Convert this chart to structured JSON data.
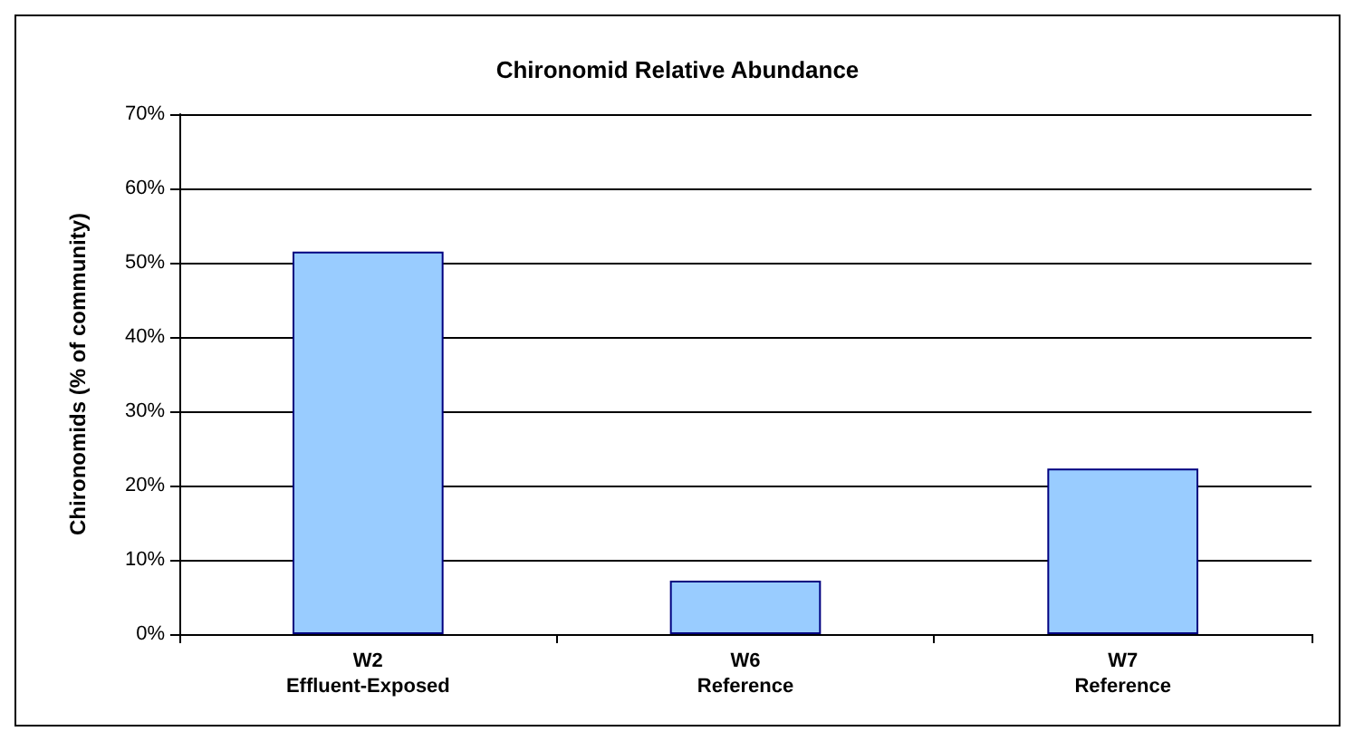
{
  "chart_data": {
    "type": "bar",
    "title": "Chironomid Relative Abundance",
    "ylabel": "Chironomids (% of community)",
    "categories": [
      "W2\nEffluent-Exposed",
      "W6\nReference",
      "W7\nReference"
    ],
    "values": [
      51.5,
      7.2,
      22.3
    ],
    "color": "#99ccff",
    "ylim": [
      0,
      70
    ],
    "yticks": [
      {
        "value": 0,
        "label": "0%"
      },
      {
        "value": 10,
        "label": "10%"
      },
      {
        "value": 20,
        "label": "20%"
      },
      {
        "value": 30,
        "label": "30%"
      },
      {
        "value": 40,
        "label": "40%"
      },
      {
        "value": 50,
        "label": "50%"
      },
      {
        "value": 60,
        "label": "60%"
      },
      {
        "value": 70,
        "label": "70%"
      }
    ],
    "grid": "y"
  }
}
